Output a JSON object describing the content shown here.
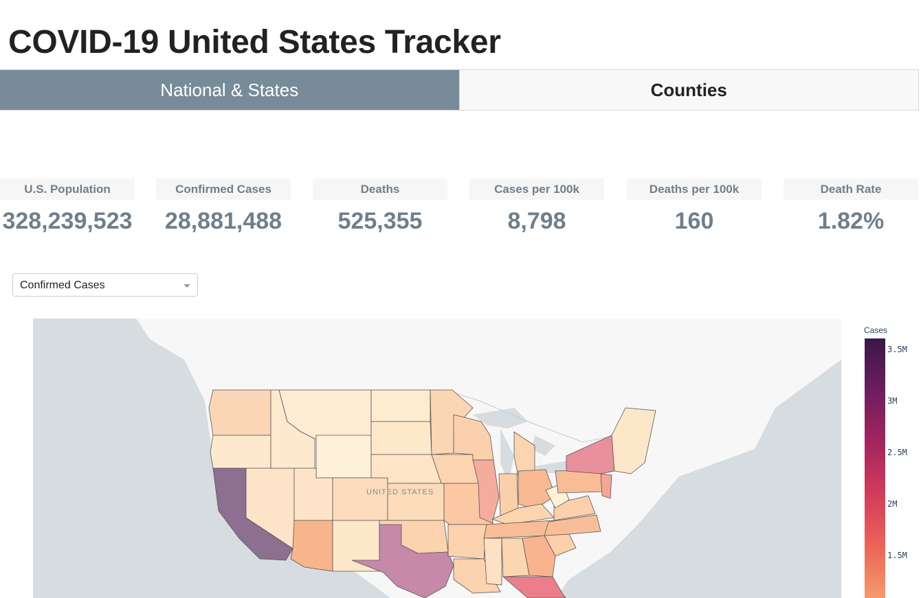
{
  "page": {
    "title": "COVID-19 United States Tracker"
  },
  "tabs": [
    {
      "label": "National & States",
      "active": true
    },
    {
      "label": "Counties",
      "active": false
    }
  ],
  "stats": [
    {
      "label": "U.S. Population",
      "value": "328,239,523"
    },
    {
      "label": "Confirmed Cases",
      "value": "28,881,488"
    },
    {
      "label": "Deaths",
      "value": "525,355"
    },
    {
      "label": "Cases per 100k",
      "value": "8,798"
    },
    {
      "label": "Deaths per 100k",
      "value": "160"
    },
    {
      "label": "Death Rate",
      "value": "1.82%"
    }
  ],
  "metric_dropdown": {
    "selected": "Confirmed Cases"
  },
  "map": {
    "country_label": "UNITED STATES",
    "colorbar": {
      "title": "Cases",
      "ticks": [
        "3.5M",
        "3M",
        "2.5M",
        "2M",
        "1.5M"
      ]
    },
    "colors": {
      "ocean": "#d6dcdf",
      "land": "#f7f7f7",
      "outline": "#555555"
    }
  }
}
